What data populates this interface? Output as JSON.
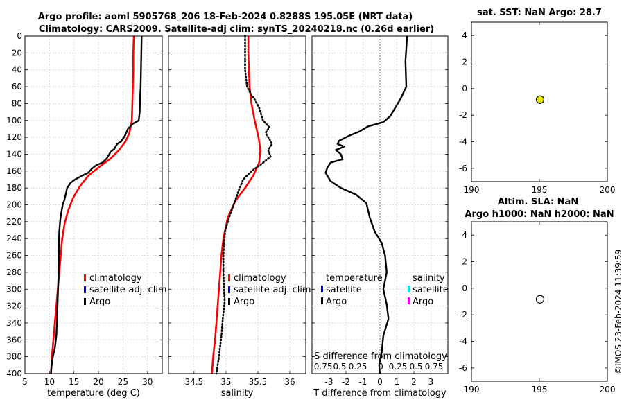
{
  "title_line1": "Argo profile: aoml 5905768_206 18-Feb-2024 0.8288S 195.05E (NRT data)",
  "title_line2": "Climatology: CARS2009. Satellite-adj clim: synTS_20240218.nc (0.26d earlier)",
  "watermark": "©IMOS 23-Feb-2024 11:39:59",
  "colors": {
    "climatology": "#ff0000",
    "satellite": "#0000ff",
    "argo": "#000000",
    "salinity_satellite": "#00e5e5",
    "salinity_argo": "#ff00ff",
    "sst_marker": "#e5e500"
  },
  "chart_data": [
    {
      "type": "line",
      "name": "temperature",
      "xlabel": "temperature (deg C)",
      "ylabel": "",
      "xlim": [
        5,
        33
      ],
      "ylim": [
        400,
        0
      ],
      "xticks": [
        5,
        10,
        15,
        20,
        25,
        30
      ],
      "yticks": [
        0,
        20,
        40,
        60,
        80,
        100,
        120,
        140,
        160,
        180,
        200,
        220,
        240,
        260,
        280,
        300,
        320,
        340,
        360,
        380,
        400
      ],
      "grid": true,
      "legend": [
        "climatology",
        "satellite-adj. clim",
        "Argo"
      ],
      "series": [
        {
          "name": "climatology",
          "style": "solid",
          "points": [
            [
              27.2,
              0
            ],
            [
              27.1,
              20
            ],
            [
              27.1,
              40
            ],
            [
              27.0,
              60
            ],
            [
              26.9,
              80
            ],
            [
              26.8,
              100
            ],
            [
              26.3,
              115
            ],
            [
              25.5,
              125
            ],
            [
              24.2,
              135
            ],
            [
              22.5,
              145
            ],
            [
              20.2,
              155
            ],
            [
              18.0,
              165
            ],
            [
              16.2,
              178
            ],
            [
              14.8,
              192
            ],
            [
              13.8,
              207
            ],
            [
              13.1,
              222
            ],
            [
              12.6,
              240
            ],
            [
              12.3,
              260
            ],
            [
              12.0,
              280
            ],
            [
              11.7,
              300
            ],
            [
              11.4,
              320
            ],
            [
              11.1,
              340
            ],
            [
              10.8,
              360
            ],
            [
              10.5,
              380
            ],
            [
              10.3,
              400
            ]
          ]
        },
        {
          "name": "Argo",
          "style": "solid",
          "points": [
            [
              28.8,
              0
            ],
            [
              28.7,
              30
            ],
            [
              28.6,
              60
            ],
            [
              28.5,
              70
            ],
            [
              28.4,
              90
            ],
            [
              28.2,
              100
            ],
            [
              27.0,
              104
            ],
            [
              26.0,
              110
            ],
            [
              25.4,
              118
            ],
            [
              24.6,
              125
            ],
            [
              23.8,
              128
            ],
            [
              23.2,
              134
            ],
            [
              22.5,
              137
            ],
            [
              21.7,
              145
            ],
            [
              20.8,
              150
            ],
            [
              19.6,
              153
            ],
            [
              18.7,
              157
            ],
            [
              17.9,
              162
            ],
            [
              16.5,
              166
            ],
            [
              15.2,
              170
            ],
            [
              14.3,
              174
            ],
            [
              13.6,
              180
            ],
            [
              13.3,
              188
            ],
            [
              13.0,
              195
            ],
            [
              12.7,
              200
            ],
            [
              12.4,
              210
            ],
            [
              12.2,
              218
            ],
            [
              12.0,
              232
            ],
            [
              11.9,
              250
            ],
            [
              11.9,
              270
            ],
            [
              11.8,
              290
            ],
            [
              11.7,
              310
            ],
            [
              11.6,
              325
            ],
            [
              11.5,
              340
            ],
            [
              11.4,
              355
            ],
            [
              11.1,
              370
            ],
            [
              10.7,
              380
            ],
            [
              10.4,
              392
            ],
            [
              10.3,
              400
            ]
          ]
        }
      ]
    },
    {
      "type": "line",
      "name": "salinity",
      "xlabel": "salinity",
      "ylabel": "",
      "xlim": [
        34.1,
        36.25
      ],
      "ylim": [
        400,
        0
      ],
      "xticks": [
        34.5,
        35,
        35.5,
        36
      ],
      "xticklabels": [
        "34.5",
        "35",
        "35.5",
        "36"
      ],
      "grid": true,
      "legend": [
        "climatology",
        "satellite-adj. clim",
        "Argo"
      ],
      "series": [
        {
          "name": "climatology",
          "style": "solid",
          "points": [
            [
              35.35,
              0
            ],
            [
              35.35,
              20
            ],
            [
              35.36,
              40
            ],
            [
              35.37,
              60
            ],
            [
              35.4,
              80
            ],
            [
              35.45,
              100
            ],
            [
              35.51,
              120
            ],
            [
              35.54,
              135
            ],
            [
              35.52,
              150
            ],
            [
              35.43,
              165
            ],
            [
              35.3,
              180
            ],
            [
              35.15,
              195
            ],
            [
              35.03,
              215
            ],
            [
              34.96,
              240
            ],
            [
              34.93,
              260
            ],
            [
              34.91,
              280
            ],
            [
              34.89,
              300
            ],
            [
              34.87,
              320
            ],
            [
              34.85,
              340
            ],
            [
              34.83,
              360
            ],
            [
              34.8,
              380
            ],
            [
              34.78,
              400
            ]
          ]
        },
        {
          "name": "Argo",
          "style": "dotted",
          "points": [
            [
              35.3,
              0
            ],
            [
              35.3,
              20
            ],
            [
              35.3,
              40
            ],
            [
              35.33,
              60
            ],
            [
              35.4,
              70
            ],
            [
              35.45,
              75
            ],
            [
              35.52,
              85
            ],
            [
              35.58,
              100
            ],
            [
              35.68,
              108
            ],
            [
              35.62,
              115
            ],
            [
              35.68,
              122
            ],
            [
              35.72,
              128
            ],
            [
              35.66,
              135
            ],
            [
              35.7,
              143
            ],
            [
              35.55,
              152
            ],
            [
              35.4,
              160
            ],
            [
              35.27,
              170
            ],
            [
              35.2,
              183
            ],
            [
              35.12,
              200
            ],
            [
              35.05,
              215
            ],
            [
              34.99,
              230
            ],
            [
              34.97,
              245
            ],
            [
              34.96,
              260
            ],
            [
              34.96,
              280
            ],
            [
              34.97,
              300
            ],
            [
              34.98,
              315
            ],
            [
              34.95,
              335
            ],
            [
              34.93,
              355
            ],
            [
              34.89,
              380
            ],
            [
              34.85,
              400
            ]
          ]
        }
      ]
    },
    {
      "type": "line",
      "name": "difference",
      "xlabel": "T difference from climatology",
      "xlabel_top": "S difference from climatology",
      "xticks_top": [
        "-0.75",
        "0.5",
        "0.25",
        "0",
        "0.25",
        "0.5",
        "0.75"
      ],
      "xlim": [
        -4,
        4
      ],
      "ylim": [
        400,
        0
      ],
      "xticks": [
        -3,
        -2,
        -1,
        0,
        1,
        2,
        3
      ],
      "grid": true,
      "legend_temperature": [
        "temperature",
        "satellite",
        "Argo"
      ],
      "legend_salinity": [
        "salinity",
        "satellite",
        "Argo"
      ],
      "series": [
        {
          "name": "Argo",
          "style": "solid",
          "points": [
            [
              1.6,
              0
            ],
            [
              1.5,
              30
            ],
            [
              1.55,
              60
            ],
            [
              1.2,
              75
            ],
            [
              0.9,
              85
            ],
            [
              0.6,
              95
            ],
            [
              0.2,
              102
            ],
            [
              -0.7,
              107
            ],
            [
              -1.2,
              113
            ],
            [
              -1.8,
              118
            ],
            [
              -2.4,
              124
            ],
            [
              -2.5,
              128
            ],
            [
              -2.1,
              131
            ],
            [
              -2.6,
              135
            ],
            [
              -2.3,
              140
            ],
            [
              -2.2,
              146
            ],
            [
              -2.9,
              150
            ],
            [
              -3.1,
              156
            ],
            [
              -3.2,
              162
            ],
            [
              -2.9,
              172
            ],
            [
              -2.3,
              180
            ],
            [
              -1.4,
              188
            ],
            [
              -0.8,
              198
            ],
            [
              -0.6,
              215
            ],
            [
              -0.3,
              232
            ],
            [
              0.1,
              245
            ],
            [
              0.3,
              260
            ],
            [
              0.4,
              280
            ],
            [
              0.2,
              300
            ],
            [
              0.4,
              318
            ],
            [
              0.5,
              335
            ],
            [
              0.2,
              355
            ],
            [
              0.1,
              375
            ],
            [
              -0.05,
              390
            ],
            [
              0.0,
              400
            ]
          ]
        }
      ]
    },
    {
      "type": "scatter",
      "name": "sst",
      "title": "sat. SST: NaN Argo: 28.7",
      "xlim": [
        190,
        200
      ],
      "ylim": [
        -7,
        5
      ],
      "xticks": [
        190,
        195,
        200
      ],
      "yticks": [
        -6,
        -4,
        -2,
        0,
        2,
        4
      ],
      "points": [
        {
          "x": 195.05,
          "y": -0.83,
          "fill": "#e5e500"
        }
      ]
    },
    {
      "type": "scatter",
      "name": "sla",
      "title": [
        "Altim. SLA: NaN",
        "Argo h1000: NaN h2000: NaN"
      ],
      "xlim": [
        190,
        200
      ],
      "ylim": [
        -7,
        5
      ],
      "xticks": [
        190,
        195,
        200
      ],
      "yticks": [
        -6,
        -4,
        -2,
        0,
        2,
        4
      ],
      "points": [
        {
          "x": 195.05,
          "y": -0.83,
          "fill": "#ffffff"
        }
      ]
    }
  ]
}
